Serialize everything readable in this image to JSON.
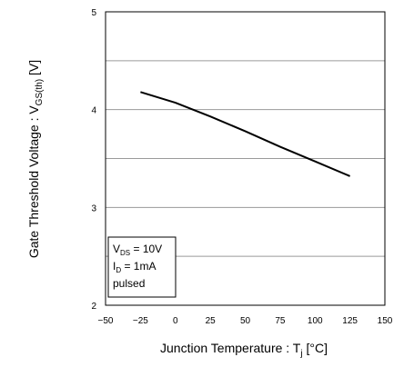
{
  "chart_data": {
    "type": "line",
    "title": "",
    "xlabel": {
      "main": "Junction Temperature : T",
      "sub": "j",
      "unit": " [°C]"
    },
    "ylabel": {
      "main": "Gate Threshold Voltage : V",
      "sub": "GS(th)",
      "unit": " [V]"
    },
    "xlim": [
      -50,
      150
    ],
    "ylim": [
      2,
      5
    ],
    "x_ticks": [
      -50,
      -25,
      0,
      25,
      50,
      75,
      100,
      125,
      150
    ],
    "x_tick_labels": [
      "−50",
      "−25",
      "0",
      "25",
      "50",
      "75",
      "100",
      "125",
      "150"
    ],
    "y_ticks": [
      2,
      3,
      4,
      5
    ],
    "y_tick_labels": [
      "2",
      "3",
      "4",
      "5"
    ],
    "grid": {
      "horizontal": true,
      "horizontal_step": 0.5,
      "vertical": false
    },
    "series": [
      {
        "color": "#000000",
        "x": [
          -25,
          0,
          25,
          50,
          75,
          100,
          125
        ],
        "y": [
          4.18,
          4.07,
          3.93,
          3.78,
          3.62,
          3.47,
          3.32
        ]
      }
    ],
    "annotation": {
      "placement": "bottom-left",
      "lines": [
        {
          "main": "V",
          "sub": "DS",
          "rest": " = 10V"
        },
        {
          "main": "I",
          "sub": "D",
          "rest": " = 1mA"
        },
        {
          "main": "pulsed",
          "sub": "",
          "rest": ""
        }
      ]
    }
  }
}
